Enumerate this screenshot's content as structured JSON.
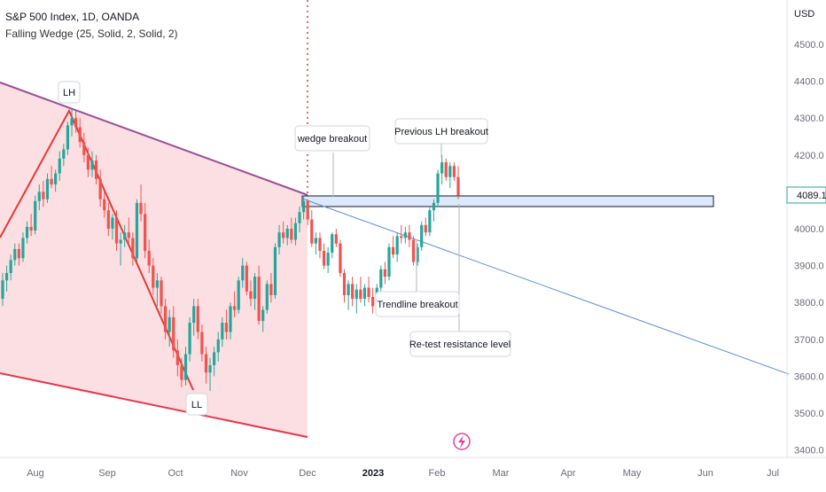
{
  "header": {
    "symbol_line": "S&P 500 Index, 1D, OANDA",
    "indicator_line": "Falling Wedge (25, Solid, 2, Solid, 2)"
  },
  "price_axis": {
    "currency": "USD",
    "ticks": [
      "4500.0",
      "4400.0",
      "4300.0",
      "4200.0",
      "4100.0",
      "4000.0",
      "3900.0",
      "3800.0",
      "3700.0",
      "3600.0",
      "3500.0",
      "3400.0"
    ],
    "current_price": "4089.1",
    "current_price_color": "#26a69a"
  },
  "time_axis": {
    "ticks": [
      "Aug",
      "Sep",
      "Oct",
      "Nov",
      "Dec",
      "2023",
      "Feb",
      "Mar",
      "Apr",
      "May",
      "Jun",
      "Jul"
    ]
  },
  "annotations": {
    "lh": "LH",
    "ll": "LL",
    "wedge_breakout": "wedge breakout",
    "previous_lh_breakout": "Previous LH breakout",
    "trendline_breakout": "Trendline breakout",
    "retest": "Re-test resistance level"
  },
  "colors": {
    "up": "#26a69a",
    "down": "#ef5350",
    "wedge_fill": "#fcdde0",
    "upper_wedge_line": "#9b4f96",
    "lower_wedge_line": "#e8364c",
    "trendline": "#5b8fdb",
    "zone_fill": "#dce8fb",
    "zone_border": "#131722",
    "vertical_marker": "#e53935"
  },
  "chart_data": {
    "type": "candlestick",
    "ylim": [
      3380,
      4620
    ],
    "candles": [
      [
        3810,
        3880,
        3790,
        3860
      ],
      [
        3860,
        3900,
        3830,
        3880
      ],
      [
        3880,
        3930,
        3860,
        3915
      ],
      [
        3915,
        3960,
        3900,
        3945
      ],
      [
        3945,
        3960,
        3900,
        3920
      ],
      [
        3920,
        3990,
        3910,
        3975
      ],
      [
        3975,
        4020,
        3960,
        4005
      ],
      [
        4005,
        4040,
        3980,
        3995
      ],
      [
        3995,
        4090,
        3985,
        4075
      ],
      [
        4075,
        4120,
        4050,
        4100
      ],
      [
        4100,
        4130,
        4060,
        4080
      ],
      [
        4080,
        4150,
        4070,
        4135
      ],
      [
        4135,
        4170,
        4110,
        4120
      ],
      [
        4120,
        4160,
        4100,
        4150
      ],
      [
        4150,
        4210,
        4130,
        4190
      ],
      [
        4190,
        4230,
        4170,
        4215
      ],
      [
        4215,
        4290,
        4200,
        4280
      ],
      [
        4280,
        4325,
        4250,
        4300
      ],
      [
        4300,
        4320,
        4260,
        4275
      ],
      [
        4275,
        4300,
        4220,
        4235
      ],
      [
        4235,
        4260,
        4180,
        4200
      ],
      [
        4200,
        4220,
        4140,
        4160
      ],
      [
        4160,
        4210,
        4140,
        4185
      ],
      [
        4185,
        4200,
        4120,
        4135
      ],
      [
        4135,
        4160,
        4060,
        4080
      ],
      [
        4080,
        4100,
        4030,
        4050
      ],
      [
        4050,
        4070,
        3980,
        4000
      ],
      [
        4000,
        4040,
        3970,
        4030
      ],
      [
        4030,
        4050,
        3940,
        3960
      ],
      [
        3960,
        3990,
        3900,
        3970
      ],
      [
        3970,
        4010,
        3950,
        3990
      ],
      [
        3990,
        4030,
        3960,
        3975
      ],
      [
        3975,
        3990,
        3900,
        3920
      ],
      [
        3920,
        4080,
        3910,
        4070
      ],
      [
        4070,
        4120,
        4020,
        4040
      ],
      [
        4040,
        4070,
        3920,
        3940
      ],
      [
        3940,
        3970,
        3880,
        3900
      ],
      [
        3900,
        3920,
        3820,
        3840
      ],
      [
        3840,
        3880,
        3790,
        3860
      ],
      [
        3860,
        3870,
        3770,
        3790
      ],
      [
        3790,
        3810,
        3700,
        3720
      ],
      [
        3720,
        3780,
        3680,
        3760
      ],
      [
        3760,
        3790,
        3650,
        3670
      ],
      [
        3670,
        3700,
        3600,
        3630
      ],
      [
        3630,
        3650,
        3570,
        3590
      ],
      [
        3590,
        3680,
        3575,
        3660
      ],
      [
        3660,
        3760,
        3640,
        3745
      ],
      [
        3745,
        3810,
        3710,
        3790
      ],
      [
        3790,
        3810,
        3700,
        3720
      ],
      [
        3720,
        3740,
        3640,
        3660
      ],
      [
        3660,
        3680,
        3580,
        3610
      ],
      [
        3610,
        3650,
        3560,
        3630
      ],
      [
        3630,
        3680,
        3600,
        3665
      ],
      [
        3665,
        3720,
        3640,
        3700
      ],
      [
        3700,
        3760,
        3680,
        3745
      ],
      [
        3745,
        3780,
        3700,
        3720
      ],
      [
        3720,
        3800,
        3700,
        3790
      ],
      [
        3790,
        3830,
        3760,
        3780
      ],
      [
        3780,
        3870,
        3770,
        3860
      ],
      [
        3860,
        3920,
        3840,
        3900
      ],
      [
        3900,
        3910,
        3820,
        3830
      ],
      [
        3830,
        3860,
        3790,
        3810
      ],
      [
        3810,
        3880,
        3780,
        3870
      ],
      [
        3870,
        3900,
        3740,
        3750
      ],
      [
        3750,
        3790,
        3720,
        3780
      ],
      [
        3780,
        3860,
        3770,
        3850
      ],
      [
        3850,
        3880,
        3800,
        3820
      ],
      [
        3820,
        3960,
        3810,
        3950
      ],
      [
        3950,
        4010,
        3930,
        3990
      ],
      [
        3990,
        4020,
        3960,
        3975
      ],
      [
        3975,
        4010,
        3955,
        4000
      ],
      [
        4000,
        4030,
        3960,
        3970
      ],
      [
        3970,
        4030,
        3955,
        4015
      ],
      [
        4015,
        4060,
        3990,
        4045
      ],
      [
        4045,
        4090,
        4025,
        4075
      ],
      [
        4075,
        4080,
        4010,
        4025
      ],
      [
        4025,
        4050,
        3950,
        3960
      ],
      [
        3960,
        3990,
        3930,
        3975
      ],
      [
        3975,
        3990,
        3920,
        3940
      ],
      [
        3940,
        3960,
        3890,
        3900
      ],
      [
        3900,
        3950,
        3880,
        3935
      ],
      [
        3935,
        3990,
        3920,
        3985
      ],
      [
        3985,
        4000,
        3950,
        3960
      ],
      [
        3960,
        3970,
        3870,
        3880
      ],
      [
        3880,
        3890,
        3800,
        3820
      ],
      [
        3820,
        3860,
        3780,
        3850
      ],
      [
        3850,
        3870,
        3790,
        3810
      ],
      [
        3810,
        3850,
        3770,
        3835
      ],
      [
        3835,
        3870,
        3800,
        3810
      ],
      [
        3810,
        3850,
        3790,
        3840
      ],
      [
        3840,
        3870,
        3800,
        3815
      ],
      [
        3815,
        3840,
        3770,
        3790
      ],
      [
        3790,
        3850,
        3780,
        3840
      ],
      [
        3840,
        3900,
        3830,
        3890
      ],
      [
        3890,
        3910,
        3850,
        3870
      ],
      [
        3870,
        3960,
        3860,
        3950
      ],
      [
        3950,
        3980,
        3920,
        3930
      ],
      [
        3930,
        3990,
        3910,
        3980
      ],
      [
        3980,
        4010,
        3960,
        3975
      ],
      [
        3975,
        4005,
        3960,
        3990
      ],
      [
        3990,
        4010,
        3950,
        3970
      ],
      [
        3970,
        3980,
        3900,
        3910
      ],
      [
        3910,
        3960,
        3900,
        3950
      ],
      [
        3950,
        4020,
        3940,
        4010
      ],
      [
        4010,
        4030,
        3980,
        3990
      ],
      [
        3990,
        4060,
        3980,
        4050
      ],
      [
        4050,
        4080,
        4020,
        4070
      ],
      [
        4070,
        4160,
        4060,
        4150
      ],
      [
        4150,
        4200,
        4120,
        4180
      ],
      [
        4180,
        4190,
        4130,
        4140
      ],
      [
        4140,
        4180,
        4110,
        4170
      ],
      [
        4170,
        4180,
        4130,
        4140
      ],
      [
        4140,
        4170,
        4080,
        4090
      ]
    ]
  }
}
